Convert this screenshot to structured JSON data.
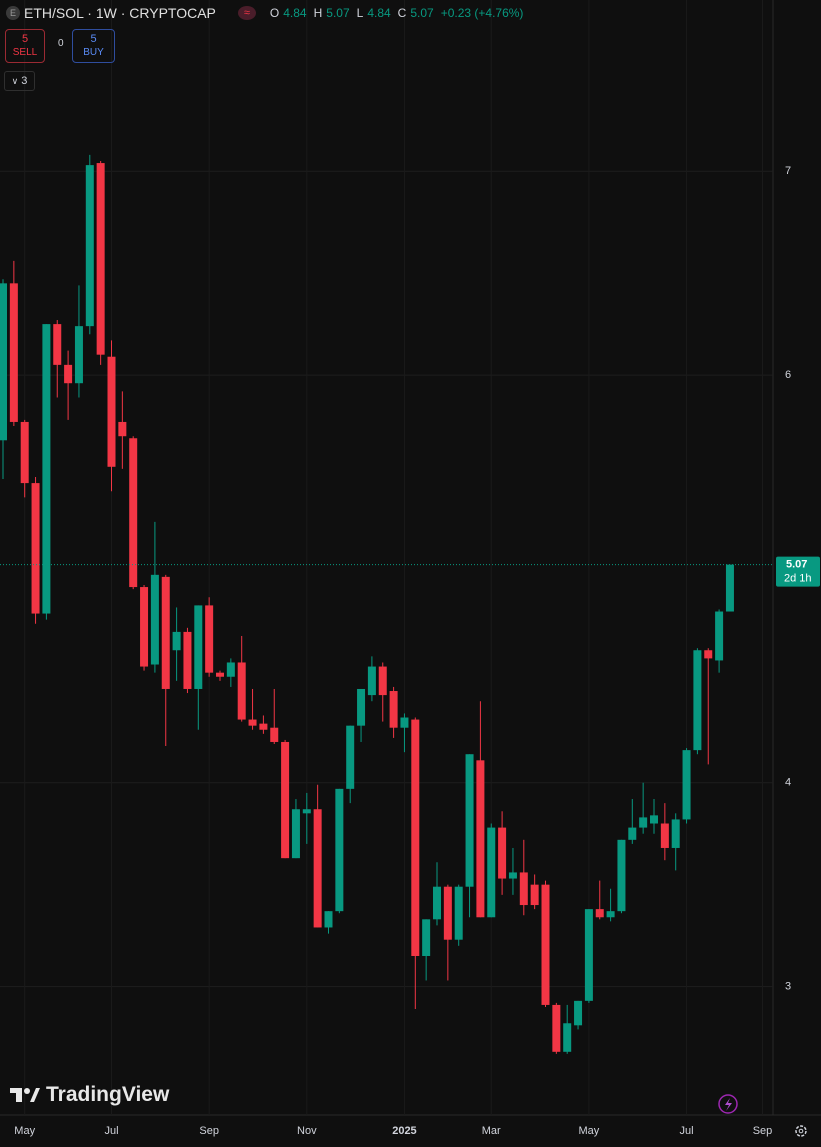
{
  "header": {
    "icon": "E",
    "title": "ETH/SOL · 1W · CRYPTOCAP",
    "labels": [
      "O",
      "H",
      "L",
      "C"
    ],
    "change": "+0.23 (+4.76%)"
  },
  "trade": {
    "sell_count": "5",
    "sell": "SELL",
    "spread": "0",
    "buy_count": "5",
    "buy": "BUY"
  },
  "indicators": {
    "count": "3"
  },
  "watermark": "TradingView",
  "chart_data": {
    "type": "candlestick",
    "categories": [
      null,
      null,
      "May",
      null,
      null,
      null,
      null,
      null,
      null,
      null,
      "Jul",
      null,
      null,
      null,
      null,
      null,
      null,
      null,
      null,
      "Sep",
      null,
      null,
      null,
      null,
      null,
      null,
      null,
      null,
      "Nov",
      null,
      null,
      null,
      null,
      null,
      null,
      null,
      null,
      "2025",
      null,
      null,
      null,
      null,
      null,
      null,
      null,
      "Mar",
      null,
      null,
      null,
      null,
      null,
      null,
      null,
      null,
      "May",
      null,
      null,
      null,
      null,
      null,
      null,
      null,
      null,
      "Jul",
      null,
      null,
      null,
      null,
      null,
      null,
      "Sep"
    ],
    "open": [
      5.68,
      6.45,
      5.77,
      5.47,
      4.83,
      6.25,
      6.05,
      5.96,
      6.24,
      7.04,
      6.09,
      5.77,
      5.69,
      4.96,
      4.58,
      5.01,
      4.65,
      4.74,
      4.46,
      4.87,
      4.54,
      4.52,
      4.59,
      4.31,
      4.29,
      4.27,
      4.2,
      3.63,
      3.85,
      3.87,
      3.29,
      3.37,
      3.97,
      4.28,
      4.43,
      4.57,
      4.45,
      4.27,
      4.31,
      3.15,
      3.33,
      3.49,
      3.23,
      3.49,
      4.11,
      3.34,
      3.78,
      3.53,
      3.56,
      3.5,
      3.5,
      2.91,
      2.68,
      2.81,
      2.93,
      3.38,
      3.34,
      3.37,
      3.72,
      3.78,
      3.8,
      3.8,
      3.68,
      3.82,
      4.16,
      4.65,
      4.6,
      4.84,
      null,
      null,
      null
    ],
    "high": [
      6.47,
      6.56,
      5.78,
      5.5,
      6.25,
      6.27,
      6.12,
      6.44,
      7.08,
      7.05,
      6.17,
      5.92,
      5.7,
      4.97,
      5.28,
      5.02,
      4.86,
      4.76,
      4.87,
      4.91,
      4.55,
      4.61,
      4.72,
      4.46,
      4.33,
      4.46,
      4.21,
      3.92,
      3.95,
      3.99,
      3.37,
      3.97,
      4.28,
      4.46,
      4.62,
      4.59,
      4.47,
      4.34,
      4.32,
      3.33,
      3.61,
      3.5,
      3.5,
      4.14,
      4.4,
      3.8,
      3.86,
      3.68,
      3.72,
      3.55,
      3.52,
      2.92,
      2.91,
      2.93,
      3.38,
      3.52,
      3.48,
      3.72,
      3.92,
      4.0,
      3.92,
      3.9,
      3.85,
      4.17,
      4.66,
      4.66,
      4.85,
      5.07,
      null,
      null,
      null
    ],
    "low": [
      5.49,
      5.75,
      5.4,
      4.78,
      4.8,
      5.89,
      5.78,
      5.89,
      6.2,
      6.05,
      5.43,
      5.54,
      4.95,
      4.55,
      4.54,
      4.18,
      4.5,
      4.44,
      4.26,
      4.52,
      4.5,
      4.47,
      4.3,
      4.26,
      4.24,
      4.19,
      3.63,
      3.63,
      3.7,
      3.29,
      3.26,
      3.36,
      3.9,
      4.2,
      4.4,
      4.3,
      4.22,
      4.15,
      2.89,
      3.03,
      3.3,
      3.03,
      3.2,
      3.34,
      3.34,
      3.34,
      3.45,
      3.45,
      3.35,
      3.38,
      2.9,
      2.67,
      2.67,
      2.79,
      2.92,
      3.33,
      3.32,
      3.36,
      3.7,
      3.75,
      3.75,
      3.62,
      3.57,
      3.8,
      4.14,
      4.09,
      4.54,
      4.84,
      null,
      null,
      null
    ],
    "close": [
      6.45,
      5.77,
      5.47,
      4.83,
      6.25,
      6.05,
      5.96,
      6.24,
      7.03,
      6.1,
      5.55,
      5.7,
      4.96,
      4.57,
      5.02,
      4.46,
      4.74,
      4.46,
      4.87,
      4.54,
      4.52,
      4.59,
      4.31,
      4.28,
      4.26,
      4.2,
      3.63,
      3.87,
      3.87,
      3.29,
      3.37,
      3.97,
      4.28,
      4.46,
      4.57,
      4.43,
      4.27,
      4.32,
      3.15,
      3.33,
      3.49,
      3.23,
      3.49,
      4.14,
      3.34,
      3.78,
      3.53,
      3.56,
      3.4,
      3.4,
      2.91,
      2.68,
      2.82,
      2.93,
      3.38,
      3.34,
      3.37,
      3.72,
      3.78,
      3.83,
      3.84,
      3.68,
      3.82,
      4.16,
      4.65,
      4.61,
      4.84,
      5.07,
      null,
      null,
      null
    ],
    "ylim": [
      2.37,
      7.84
    ],
    "yticks": [
      3,
      4,
      6,
      7
    ],
    "grid": true,
    "up_color": "#089981",
    "down_color": "#f23645",
    "countdown": "2d 1h"
  }
}
